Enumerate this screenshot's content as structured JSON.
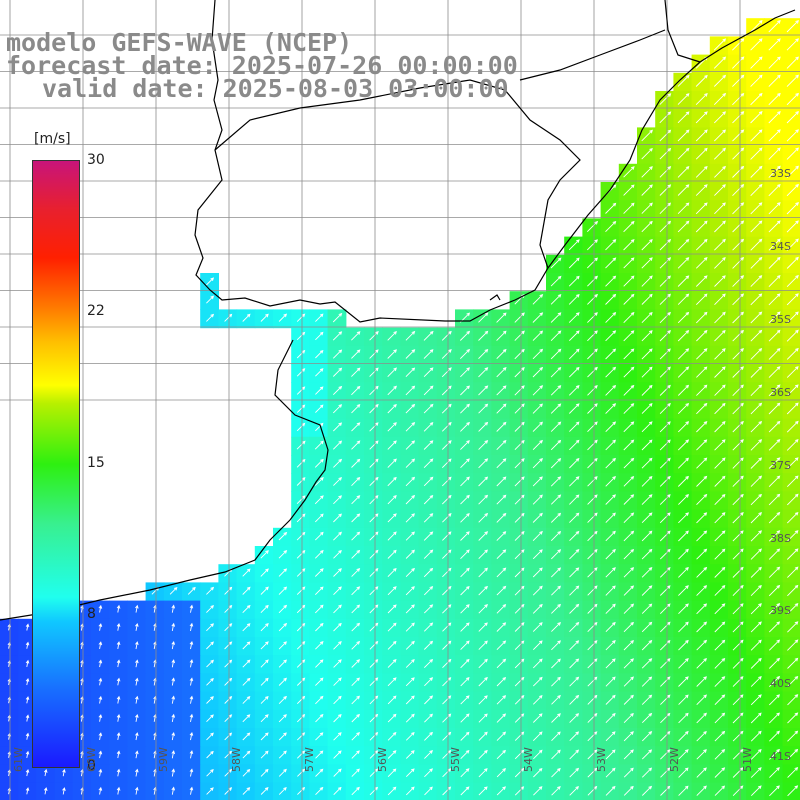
{
  "header": {
    "line1": "modelo GEFS-WAVE (NCEP)",
    "line2": "forecast date: 2025-07-26 00:00:00",
    "line3": "valid date: 2025-08-03 03:00:00"
  },
  "colorbar": {
    "unit": "[m/s]",
    "ticks": [
      "30",
      "22",
      "15",
      "8",
      "0"
    ],
    "range": [
      0,
      30
    ]
  },
  "lat_labels": [
    "33S",
    "34S",
    "35S",
    "36S",
    "37S",
    "38S",
    "39S",
    "40S",
    "41S"
  ],
  "lon_labels": [
    "61W",
    "60W",
    "59W",
    "58W",
    "57W",
    "56W",
    "55W",
    "54W",
    "53W",
    "52W",
    "51W"
  ],
  "colors": {
    "grid": "#8c8c8c",
    "land": "#ffffff",
    "coast": "#000000",
    "arrow": "#ffffff"
  }
}
